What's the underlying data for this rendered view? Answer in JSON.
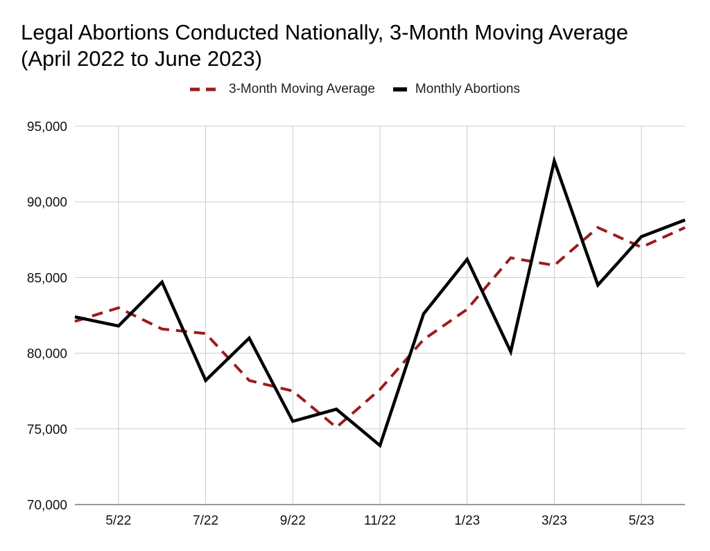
{
  "chart_data": {
    "type": "line",
    "title": "Legal Abortions Conducted Nationally, 3-Month Moving Average",
    "subtitle": "(April 2022 to June 2023)",
    "x": [
      "4/22",
      "5/22",
      "6/22",
      "7/22",
      "8/22",
      "9/22",
      "10/22",
      "11/22",
      "12/22",
      "1/23",
      "2/23",
      "3/23",
      "4/23",
      "5/23",
      "6/23"
    ],
    "x_tick_labels": [
      "5/22",
      "7/22",
      "9/22",
      "11/22",
      "1/23",
      "3/23",
      "5/23"
    ],
    "y_tick_labels": [
      "95,000",
      "90,000",
      "85,000",
      "80,000",
      "75,000",
      "70,000"
    ],
    "ylim": [
      70000,
      95000
    ],
    "grid": true,
    "legend_position": "top",
    "series": [
      {
        "name": "3-Month Moving Average",
        "style": "dashed",
        "color": "#9b1c1c",
        "values": [
          82100,
          83000,
          81600,
          81300,
          78200,
          77500,
          75100,
          77600,
          80900,
          82900,
          86300,
          85800,
          88300,
          87000,
          88300
        ]
      },
      {
        "name": "Monthly Abortions",
        "style": "solid",
        "color": "#000000",
        "values": [
          82400,
          81800,
          84700,
          78200,
          81000,
          75500,
          76300,
          73900,
          82600,
          86200,
          80100,
          92700,
          84500,
          87700,
          88800
        ]
      }
    ]
  }
}
